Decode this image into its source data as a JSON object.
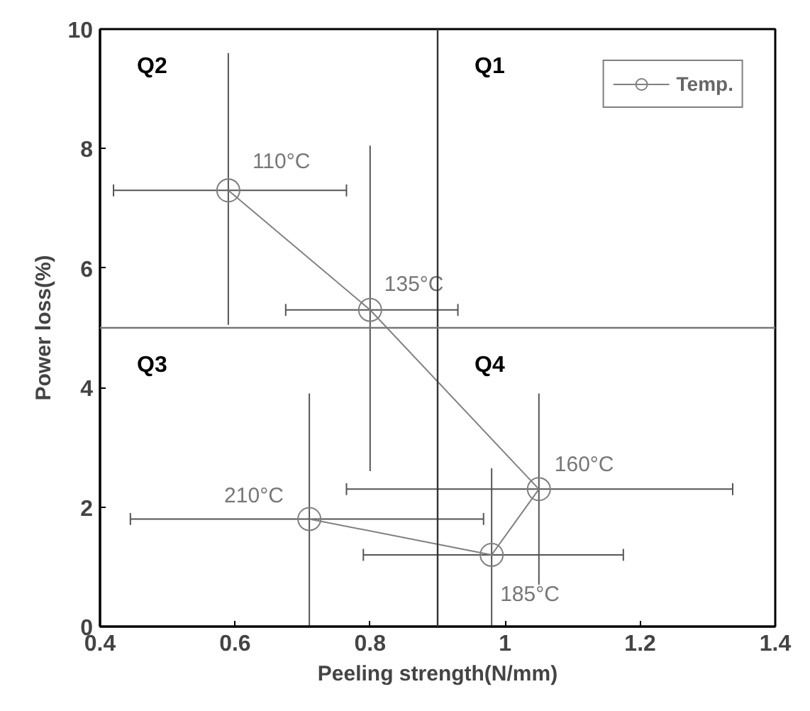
{
  "chart_data": {
    "type": "line",
    "xlabel": "Peeling strength(N/mm)",
    "ylabel": "Power loss(%)",
    "x": [
      0.59,
      0.8,
      1.05,
      0.98,
      0.71
    ],
    "series": [
      {
        "name": "Temp.",
        "color": "#808080",
        "values": [
          7.3,
          5.3,
          2.3,
          1.2,
          1.8
        ],
        "errors": [
          [
            5.05,
            9.6
          ],
          [
            2.6,
            8.05
          ],
          [
            0.7,
            3.9
          ],
          [
            0.0,
            2.65
          ],
          [
            0.0,
            3.9
          ]
        ],
        "xerrors": [
          [
            0.42,
            0.765
          ],
          [
            0.675,
            0.93
          ],
          [
            0.765,
            1.337
          ],
          [
            0.79,
            1.175
          ],
          [
            0.445,
            0.968
          ]
        ]
      }
    ],
    "xlim": [
      0.4,
      1.4
    ],
    "xticks": [
      0.4,
      0.6,
      0.8,
      {
        "value": 1.0,
        "label": "1"
      },
      1.2,
      1.4
    ],
    "ylim": [
      0,
      10
    ],
    "yticks": [
      0,
      2,
      4,
      6,
      8,
      10
    ],
    "ref_lines": [
      {
        "axis": "x",
        "value": 0.9,
        "label": null,
        "color": "#333333"
      },
      {
        "axis": "y",
        "value": 5,
        "label": null,
        "color": "#777777"
      }
    ],
    "annotations": [
      "Q2",
      "Q1",
      "Q3",
      "Q4",
      {
        "text": "110°C",
        "x": 0.59,
        "y": 7.3
      },
      {
        "text": "135°C",
        "x": 0.8,
        "y": 5.3
      },
      {
        "text": "160°C",
        "x": 1.05,
        "y": 2.3
      },
      {
        "text": "185°C",
        "x": 0.98,
        "y": 1.2
      },
      {
        "text": "210°C",
        "x": 0.71,
        "y": 1.8
      }
    ],
    "marker": "circle",
    "line_style": "solid",
    "grid": false,
    "legend": "top right"
  }
}
